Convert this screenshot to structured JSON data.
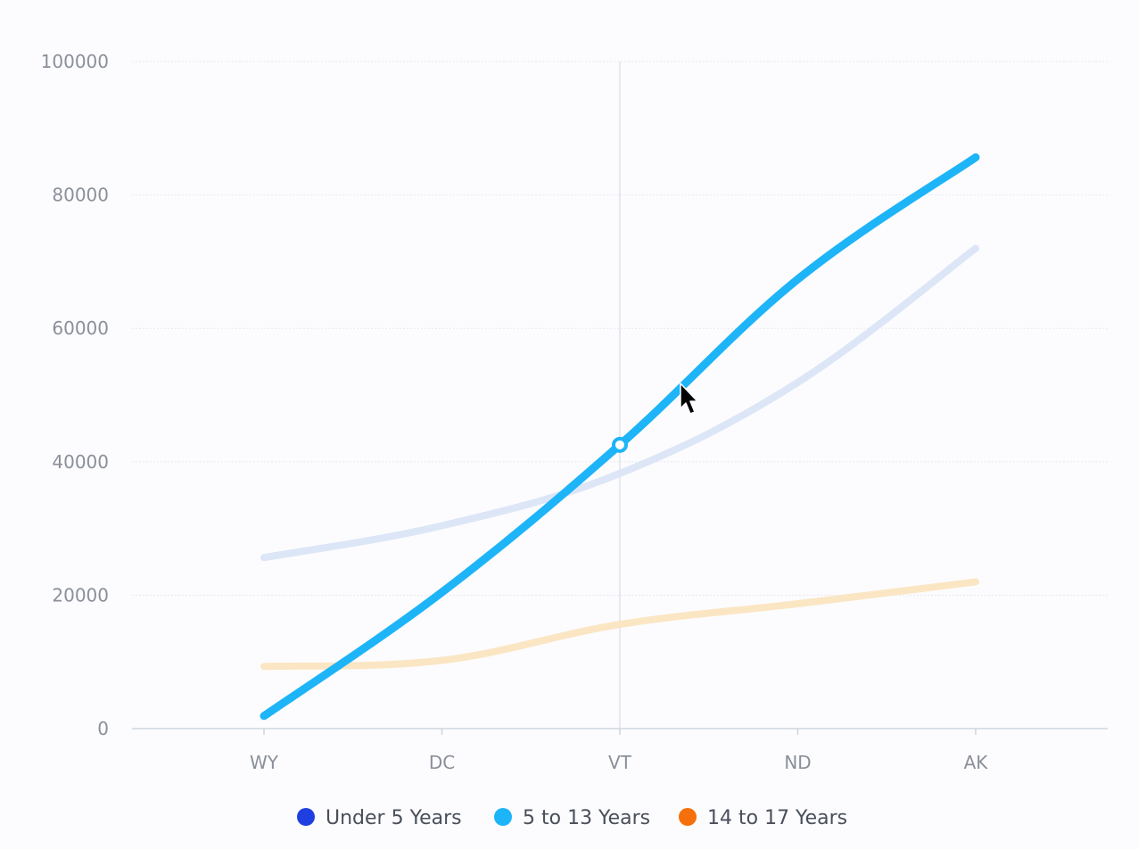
{
  "chart_data": {
    "type": "line",
    "categories": [
      "WY",
      "DC",
      "VT",
      "ND",
      "AK"
    ],
    "series": [
      {
        "name": "Under 5 Years",
        "values": [
          25635,
          30415,
          38253,
          51896,
          72000
        ],
        "color": "#dce6f6",
        "highlighted": false
      },
      {
        "name": "5 to 13 Years",
        "values": [
          1890,
          20439,
          42538,
          67358,
          85640
        ],
        "color": "#1eb4f8",
        "highlighted": true
      },
      {
        "name": "14 to 17 Years",
        "values": [
          9314,
          10225,
          15624,
          18719,
          22000
        ],
        "color": "#fbe6c4",
        "highlighted": false
      }
    ],
    "yticks": [
      0,
      20000,
      40000,
      60000,
      80000,
      100000
    ],
    "ylim": [
      0,
      100000
    ],
    "crosshair_category": "VT",
    "hover_point": {
      "series": "5 to 13 Years",
      "category": "VT",
      "value": 42538
    },
    "grid": true,
    "legend_position": "bottom",
    "legend_colors": [
      "#1f3fe0",
      "#1eb4f8",
      "#f5700a"
    ]
  }
}
